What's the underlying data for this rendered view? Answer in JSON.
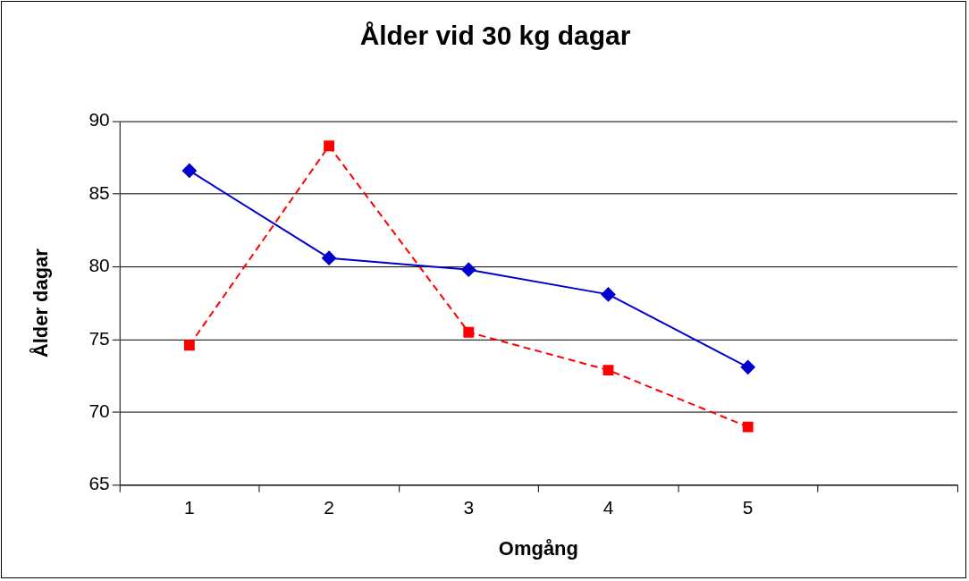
{
  "chart_data": {
    "type": "line",
    "title": "Ålder vid 30 kg dagar",
    "xlabel": "Omgång",
    "ylabel": "Ålder dagar",
    "categories": [
      "1",
      "2",
      "3",
      "4",
      "5",
      null
    ],
    "series": [
      {
        "color": "#0000cc",
        "values": [
          86.6,
          80.6,
          79.8,
          78.1,
          73.1,
          null
        ],
        "marker": "diamond",
        "line_style": "solid"
      },
      {
        "color": "#ff0000",
        "values": [
          74.6,
          88.3,
          75.5,
          72.9,
          69.0,
          null
        ],
        "marker": "square",
        "line_style": "dashed"
      }
    ],
    "ylim": [
      65,
      90
    ],
    "yticks": [
      65,
      70,
      75,
      80,
      85,
      90
    ],
    "grid": "y",
    "legend": false
  }
}
